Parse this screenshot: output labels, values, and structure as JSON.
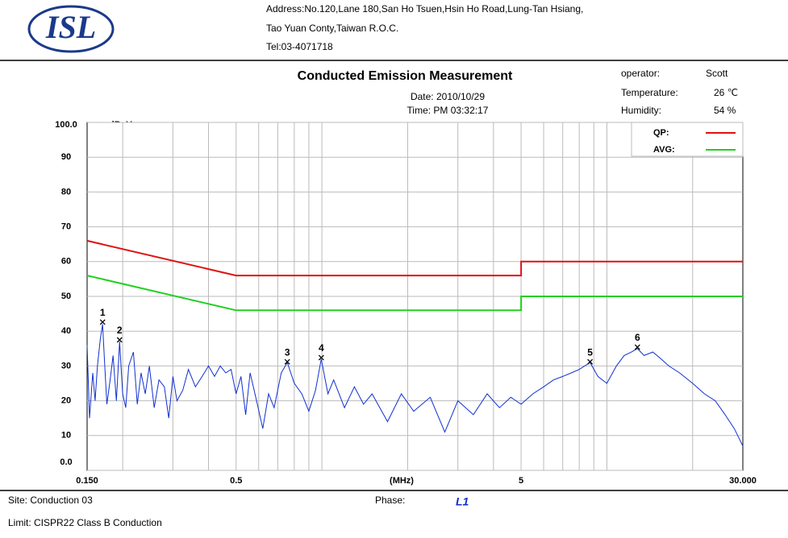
{
  "header": {
    "logo": "ISL",
    "address1": "Address:No.120,Lane 180,San Ho Tsuen,Hsin Ho Road,Lung-Tan Hsiang,",
    "address2": "Tao Yuan Conty,Taiwan R.O.C.",
    "tel": "Tel:03-4071718"
  },
  "info": {
    "operator_label": "operator:",
    "operator": "Scott",
    "temperature_label": "Temperature:",
    "temperature": "26 ℃",
    "humidity_label": "Humidity:",
    "humidity": "54 %",
    "date": "Date: 2010/10/29",
    "time": "Time: PM 03:32:17"
  },
  "footer": {
    "site": "Site:  Conduction 03",
    "phase_label": "Phase:",
    "phase": "L1",
    "limit": "Limit:  CISPR22 Class B Conduction"
  },
  "chart_data": {
    "type": "line",
    "title": "Conducted Emission Measurement",
    "y_unit": "dBuV",
    "x_label": "(MHz)",
    "log_x": true,
    "grid": true,
    "xlim": [
      0.15,
      30
    ],
    "ylim": [
      0,
      100
    ],
    "xticks": [
      {
        "value": 0.15,
        "label": "0.150"
      },
      0.5,
      5,
      {
        "value": 30,
        "label": "30.000"
      }
    ],
    "yticks": [
      {
        "value": 0,
        "label": "0.0"
      },
      10,
      20,
      30,
      40,
      50,
      60,
      70,
      80,
      90,
      {
        "value": 100,
        "label": "100.0"
      }
    ],
    "xgrid": [
      0.2,
      0.3,
      0.4,
      0.5,
      0.6,
      0.7,
      0.8,
      0.9,
      1,
      2,
      3,
      4,
      5,
      6,
      7,
      8,
      9,
      10,
      20
    ],
    "series": [
      {
        "name": "QP:",
        "color": "#e01010",
        "x": [
          0.15,
          0.5,
          5,
          5,
          30
        ],
        "values": [
          66,
          56,
          56,
          60,
          60
        ]
      },
      {
        "name": "AVG:",
        "color": "#20d020",
        "x": [
          0.15,
          0.5,
          5,
          5,
          30
        ],
        "values": [
          56,
          46,
          46,
          50,
          50
        ]
      }
    ],
    "measurement": {
      "color": "#1030d0",
      "x": [
        0.15,
        0.153,
        0.157,
        0.16,
        0.163,
        0.167,
        0.17,
        0.173,
        0.176,
        0.18,
        0.185,
        0.19,
        0.195,
        0.2,
        0.205,
        0.21,
        0.218,
        0.225,
        0.232,
        0.24,
        0.248,
        0.258,
        0.268,
        0.28,
        0.29,
        0.3,
        0.31,
        0.325,
        0.34,
        0.36,
        0.38,
        0.4,
        0.42,
        0.44,
        0.46,
        0.48,
        0.5,
        0.52,
        0.54,
        0.56,
        0.59,
        0.62,
        0.65,
        0.68,
        0.72,
        0.756,
        0.8,
        0.85,
        0.9,
        0.95,
        0.995,
        1.05,
        1.1,
        1.2,
        1.3,
        1.4,
        1.5,
        1.7,
        1.9,
        2.1,
        2.4,
        2.7,
        3,
        3.4,
        3.8,
        4.2,
        4.6,
        5,
        5.5,
        6,
        6.5,
        7,
        7.5,
        8,
        8.73,
        9.3,
        10,
        10.8,
        11.5,
        12.2,
        12.8,
        13.5,
        14.5,
        15.5,
        16.5,
        18,
        20,
        22,
        24,
        26,
        28,
        30
      ],
      "values": [
        36,
        15,
        28,
        20,
        30,
        38,
        42,
        30,
        19,
        25,
        33,
        20,
        37,
        22,
        18,
        30,
        34,
        19,
        28,
        22,
        30,
        18,
        26,
        24,
        15,
        27,
        20,
        23,
        29,
        24,
        27,
        30,
        27,
        30,
        28,
        29,
        22,
        27,
        16,
        28,
        20,
        12,
        22,
        18,
        28,
        31,
        25,
        22,
        17,
        23,
        32,
        22,
        26,
        18,
        24,
        19,
        22,
        14,
        22,
        17,
        21,
        11,
        20,
        16,
        22,
        18,
        21,
        19,
        22,
        24,
        26,
        27,
        28,
        29,
        31,
        27,
        25,
        30,
        33,
        34,
        35,
        33,
        34,
        32,
        30,
        28,
        25,
        22,
        20,
        16,
        12,
        7
      ]
    },
    "markers": [
      {
        "label": "1",
        "x": 0.17,
        "value": 42.6
      },
      {
        "label": "2",
        "x": 0.195,
        "value": 37.5
      },
      {
        "label": "3",
        "x": 0.756,
        "value": 31.2
      },
      {
        "label": "4",
        "x": 0.995,
        "value": 32.4
      },
      {
        "label": "5",
        "x": 8.73,
        "value": 31.2
      },
      {
        "label": "6",
        "x": 12.8,
        "value": 35.4
      }
    ]
  }
}
